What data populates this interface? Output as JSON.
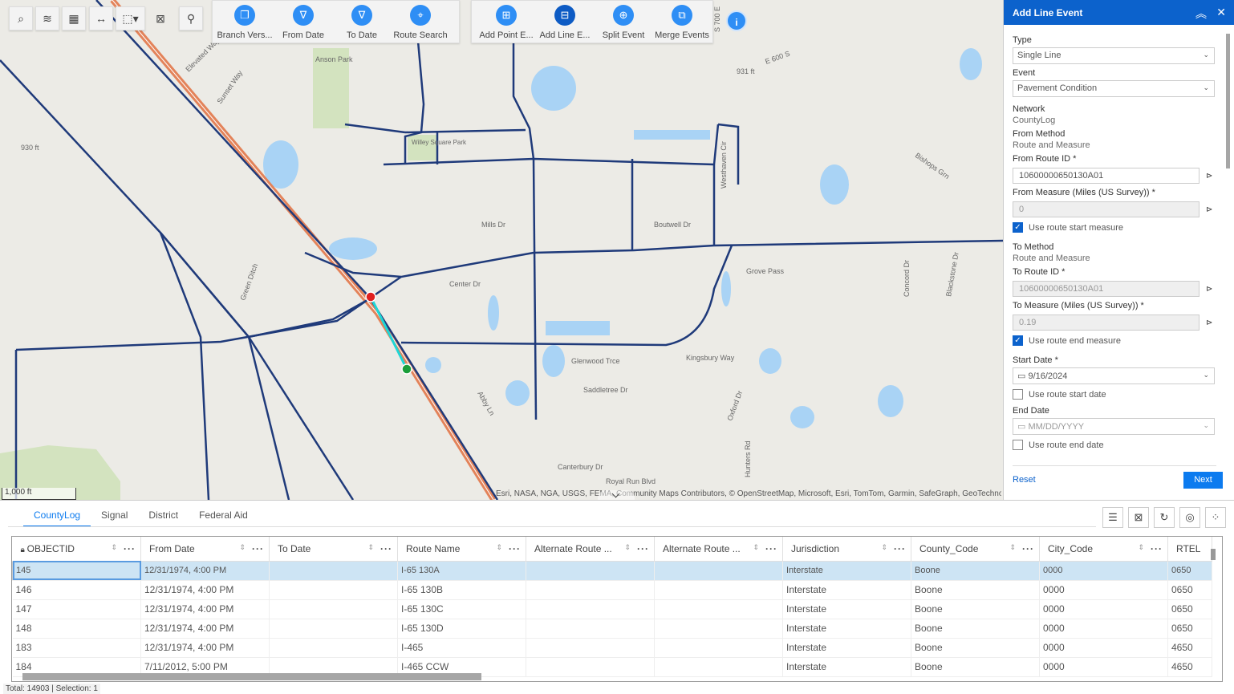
{
  "toolbar": {
    "small_tools": [
      {
        "icon": "search-icon",
        "g": "⌕"
      },
      {
        "icon": "layers-icon",
        "g": "≋"
      },
      {
        "icon": "basemap-gallery-icon",
        "g": "▦"
      },
      {
        "icon": "measure-icon",
        "g": "↔"
      },
      {
        "icon": "select-icon",
        "g": "⬚▾"
      },
      {
        "icon": "clear-selection-icon",
        "g": "⊠"
      },
      {
        "icon": "identify-icon",
        "g": "⚲"
      }
    ],
    "group1": [
      {
        "label": "Branch Vers...",
        "icon": "branch-versioning-icon",
        "g": "❐"
      },
      {
        "label": "From Date",
        "icon": "filter-icon",
        "g": "∇"
      },
      {
        "label": "To Date",
        "icon": "filter-icon",
        "g": "∇"
      },
      {
        "label": "Route Search",
        "icon": "route-search-icon",
        "g": "⌖"
      }
    ],
    "group2": [
      {
        "label": "Add Point E...",
        "icon": "add-point-event-icon",
        "g": "⊞"
      },
      {
        "label": "Add Line E...",
        "icon": "add-line-event-icon",
        "g": "⊟",
        "active": true
      },
      {
        "label": "Split Event",
        "icon": "split-event-icon",
        "g": "⊕"
      },
      {
        "label": "Merge Events",
        "icon": "merge-events-icon",
        "g": "⧉"
      }
    ]
  },
  "map": {
    "scale": "1,000 ft",
    "attribution": "Esri, NASA, NGA, USGS, FEMA, Community Maps Contributors, © OpenStreetMap, Microsoft, Esri, TomTom, Garmin, SafeGraph, GeoTechnol",
    "labels": {
      "anson": "Anson Park",
      "willey": "Willey Square Park",
      "elevated": "Elevated Way",
      "sunset": "Sunset Way",
      "mills": "Mills Dr",
      "center": "Center Dr",
      "boutwell": "Boutwell Dr",
      "glenwood": "Glenwood Trce",
      "saddletree": "Saddletree Dr",
      "kingsbury": "Kingsbury Way",
      "grove": "Grove Pass",
      "canterbury": "Canterbury Dr",
      "royal": "Royal Run Blvd",
      "ft930": "930 ft",
      "ft931": "931 ft",
      "e600": "E 600 S",
      "s700": "S 700 E",
      "green": "Green Ditch",
      "abby": "Abby Ln",
      "bishops": "Bishops Grn",
      "westhaven": "Westhaven Cir",
      "concord": "Concord Dr",
      "blackstone": "Blackstone Dr",
      "oxford": "Oxford Dr",
      "hunters": "Hunters Rd"
    }
  },
  "panel": {
    "title": "Add Line Event",
    "type_label": "Type",
    "type_value": "Single Line",
    "event_label": "Event",
    "event_value": "Pavement Condition",
    "network_label": "Network",
    "network_value": "CountyLog",
    "from_method_label": "From Method",
    "from_method_value": "Route and Measure",
    "from_route_label": "From Route ID *",
    "from_route_value": "10600000650130A01",
    "from_measure_label": "From Measure (Miles (US Survey)) *",
    "from_measure_value": "0",
    "use_start_measure": "Use route start measure",
    "use_start_measure_checked": true,
    "to_method_label": "To Method",
    "to_method_value": "Route and Measure",
    "to_route_label": "To Route ID *",
    "to_route_value": "10600000650130A01",
    "to_measure_label": "To Measure (Miles (US Survey)) *",
    "to_measure_value": "0.19",
    "use_end_measure": "Use route end measure",
    "use_end_measure_checked": true,
    "start_date_label": "Start Date *",
    "start_date_value": "9/16/2024",
    "use_start_date": "Use route start date",
    "use_start_date_checked": false,
    "end_date_label": "End Date",
    "end_date_placeholder": "MM/DD/YYYY",
    "use_end_date": "Use route end date",
    "use_end_date_checked": false,
    "reset": "Reset",
    "next": "Next"
  },
  "table": {
    "tabs": [
      "CountyLog",
      "Signal",
      "District",
      "Federal Aid"
    ],
    "active_tab": "CountyLog",
    "columns": [
      "OBJECTID",
      "From Date",
      "To Date",
      "Route Name",
      "Alternate Route ...",
      "Alternate Route ...",
      "Jurisdiction",
      "County_Code",
      "City_Code",
      "RTEL"
    ],
    "rows": [
      [
        "145",
        "12/31/1974, 4:00 PM",
        "",
        "I-65 130A",
        "",
        "",
        "Interstate",
        "Boone",
        "0000",
        "0650"
      ],
      [
        "146",
        "12/31/1974, 4:00 PM",
        "",
        "I-65 130B",
        "",
        "",
        "Interstate",
        "Boone",
        "0000",
        "0650"
      ],
      [
        "147",
        "12/31/1974, 4:00 PM",
        "",
        "I-65 130C",
        "",
        "",
        "Interstate",
        "Boone",
        "0000",
        "0650"
      ],
      [
        "148",
        "12/31/1974, 4:00 PM",
        "",
        "I-65 130D",
        "",
        "",
        "Interstate",
        "Boone",
        "0000",
        "0650"
      ],
      [
        "183",
        "12/31/1974, 4:00 PM",
        "",
        "I-465",
        "",
        "",
        "Interstate",
        "Boone",
        "0000",
        "4650"
      ],
      [
        "184",
        "7/11/2012, 5:00 PM",
        "",
        "I-465 CCW",
        "",
        "",
        "Interstate",
        "Boone",
        "0000",
        "4650"
      ]
    ],
    "selected_row": 0,
    "status": "Total: 14903 | Selection: 1"
  },
  "colors": {
    "accent": "#0c62cc",
    "route": "#1f3a7a",
    "highway": "#e0835a",
    "selected_segment": "#1ed6d6"
  }
}
